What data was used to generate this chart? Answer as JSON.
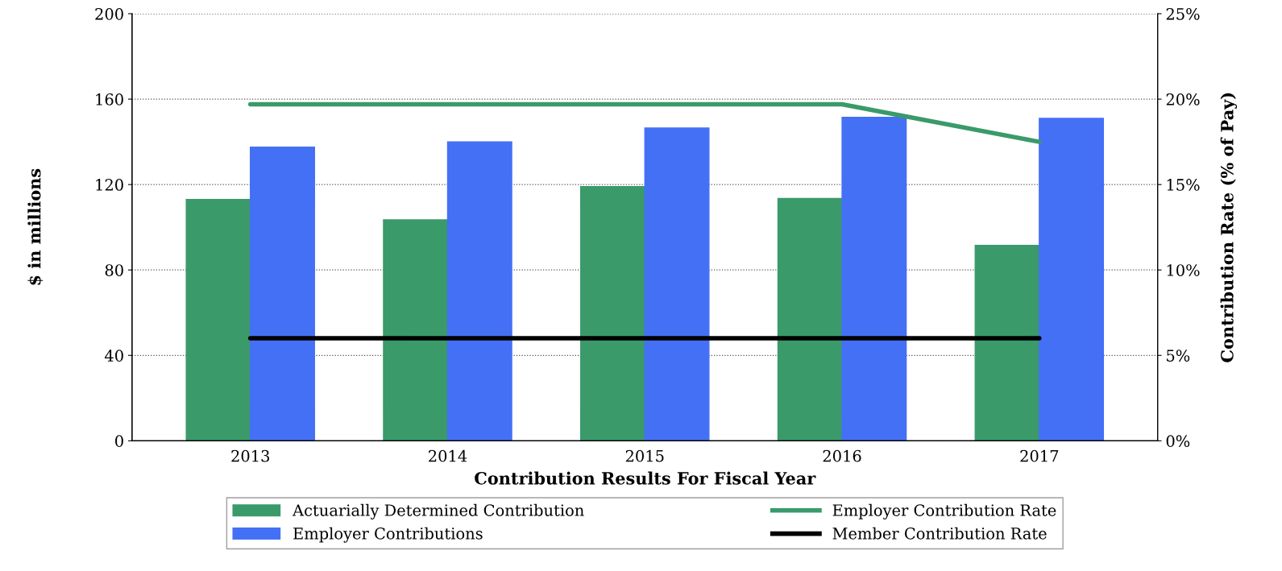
{
  "chart_data": {
    "type": "bar",
    "xlabel": "Contribution Results For Fiscal Year",
    "ylabel": "$ in millions",
    "y2label": "Contribution Rate (% of Pay)",
    "categories": [
      "2013",
      "2014",
      "2015",
      "2016",
      "2017"
    ],
    "series": [
      {
        "name": "Actuarially Determined Contribution",
        "color": "#3a9a6a",
        "values": [
          113,
          103.5,
          119,
          113.5,
          91.5
        ]
      },
      {
        "name": "Employer Contributions",
        "color": "#4470f5",
        "values": [
          137.5,
          140,
          146.5,
          151.5,
          151
        ]
      },
      {
        "name": "Employer Contribution Rate",
        "type": "line",
        "axis": "y2",
        "color": "#3a9a6a",
        "values": [
          19.7,
          19.7,
          19.7,
          19.7,
          17.5
        ]
      },
      {
        "name": "Member Contribution Rate",
        "type": "line",
        "axis": "y2",
        "color": "#000000",
        "values": [
          6.0,
          6.0,
          6.0,
          6.0,
          6.0
        ]
      }
    ],
    "ylim": [
      0,
      200
    ],
    "yticks": [
      0,
      40,
      80,
      120,
      160,
      200
    ],
    "y2lim": [
      0,
      25
    ],
    "y2ticks": [
      {
        "value": 0,
        "label": "0%"
      },
      {
        "value": 5,
        "label": "5%"
      },
      {
        "value": 10,
        "label": "10%"
      },
      {
        "value": 15,
        "label": "15%"
      },
      {
        "value": 20,
        "label": "20%"
      },
      {
        "value": 25,
        "label": "25%"
      }
    ],
    "grid": "y",
    "legend": "bottom"
  }
}
